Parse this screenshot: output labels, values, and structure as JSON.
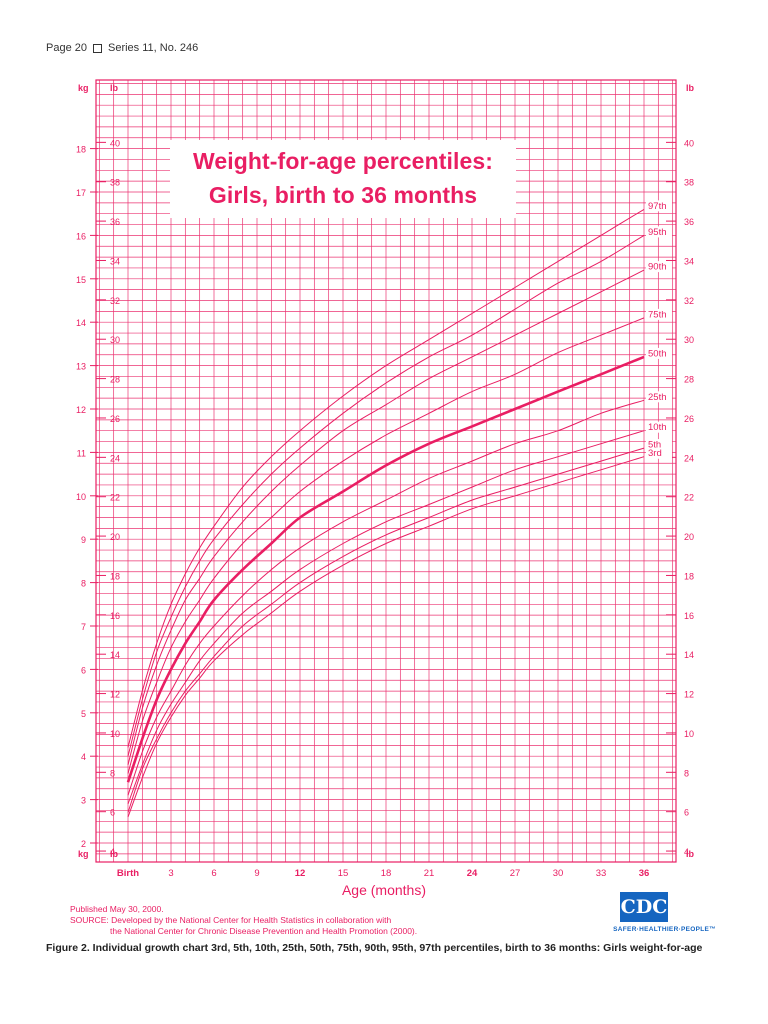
{
  "header": {
    "page": "Page 20",
    "series": "Series 11, No. 246"
  },
  "chart_data": {
    "type": "line",
    "title_lines": [
      "Weight-for-age percentiles:",
      "Girls, birth to 36 months"
    ],
    "xlabel": "Age (months)",
    "x_ticks": [
      "Birth",
      "3",
      "6",
      "9",
      "12",
      "15",
      "18",
      "21",
      "24",
      "27",
      "30",
      "33",
      "36"
    ],
    "x_range": [
      0,
      36
    ],
    "kg_axis": {
      "unit": "kg",
      "range": [
        2,
        18
      ],
      "ticks": [
        2,
        3,
        4,
        5,
        6,
        7,
        8,
        9,
        10,
        11,
        12,
        13,
        14,
        15,
        16,
        17,
        18
      ]
    },
    "lb_axis": {
      "unit": "lb",
      "range": [
        4,
        40
      ],
      "ticks": [
        4,
        6,
        8,
        10,
        12,
        14,
        16,
        18,
        20,
        22,
        24,
        26,
        28,
        30,
        32,
        34,
        36,
        38,
        40
      ]
    },
    "x": [
      0,
      1,
      2,
      3,
      4,
      5,
      6,
      8,
      10,
      12,
      15,
      18,
      21,
      24,
      27,
      30,
      33,
      36
    ],
    "series": [
      {
        "name": "97th",
        "values": [
          4.2,
          5.5,
          6.6,
          7.5,
          8.2,
          8.8,
          9.3,
          10.2,
          10.9,
          11.5,
          12.3,
          13.0,
          13.6,
          14.2,
          14.8,
          15.4,
          16.0,
          16.6
        ]
      },
      {
        "name": "95th",
        "values": [
          4.0,
          5.3,
          6.4,
          7.2,
          7.9,
          8.5,
          9.0,
          9.8,
          10.5,
          11.1,
          11.9,
          12.6,
          13.2,
          13.7,
          14.3,
          14.9,
          15.4,
          16.0
        ]
      },
      {
        "name": "90th",
        "values": [
          3.8,
          5.1,
          6.1,
          6.9,
          7.6,
          8.1,
          8.6,
          9.4,
          10.1,
          10.7,
          11.5,
          12.1,
          12.7,
          13.2,
          13.7,
          14.2,
          14.7,
          15.2
        ]
      },
      {
        "name": "75th",
        "values": [
          3.6,
          4.8,
          5.7,
          6.5,
          7.1,
          7.6,
          8.1,
          8.9,
          9.5,
          10.1,
          10.8,
          11.4,
          11.9,
          12.4,
          12.8,
          13.3,
          13.7,
          14.1
        ]
      },
      {
        "name": "50th",
        "values": [
          3.4,
          4.4,
          5.3,
          6.0,
          6.6,
          7.1,
          7.6,
          8.3,
          8.9,
          9.5,
          10.1,
          10.7,
          11.2,
          11.6,
          12.0,
          12.4,
          12.8,
          13.2
        ]
      },
      {
        "name": "25th",
        "values": [
          3.1,
          4.1,
          4.9,
          5.5,
          6.1,
          6.6,
          7.0,
          7.7,
          8.3,
          8.8,
          9.4,
          9.9,
          10.4,
          10.8,
          11.2,
          11.5,
          11.9,
          12.2
        ]
      },
      {
        "name": "10th",
        "values": [
          2.9,
          3.8,
          4.6,
          5.2,
          5.7,
          6.2,
          6.6,
          7.3,
          7.8,
          8.3,
          8.9,
          9.4,
          9.8,
          10.2,
          10.6,
          10.9,
          11.2,
          11.5
        ]
      },
      {
        "name": "5th",
        "values": [
          2.7,
          3.7,
          4.4,
          5.0,
          5.5,
          5.9,
          6.3,
          7.0,
          7.5,
          8.0,
          8.6,
          9.1,
          9.5,
          9.9,
          10.2,
          10.5,
          10.8,
          11.1
        ]
      },
      {
        "name": "3rd",
        "values": [
          2.6,
          3.5,
          4.3,
          4.9,
          5.4,
          5.8,
          6.2,
          6.8,
          7.3,
          7.8,
          8.4,
          8.9,
          9.3,
          9.7,
          10.0,
          10.3,
          10.6,
          10.9
        ]
      }
    ],
    "emphasized_series": "50th",
    "grid": true,
    "colors": {
      "line": "#e91e63",
      "grid": "#e91e63"
    }
  },
  "footer": {
    "published": "Published May 30, 2000.",
    "source_line1": "SOURCE: Developed by the National Center for Health Statistics in collaboration with",
    "source_line2": "the National Center for Chronic Disease Prevention and Health Promotion (2000)."
  },
  "caption": "Figure 2. Individual growth chart 3rd, 5th, 10th, 25th, 50th, 75th, 90th, 95th, 97th percentiles, birth to 36 months: Girls weight-for-age",
  "logo": {
    "text": "CDC",
    "tagline": "SAFER·HEALTHIER·PEOPLE™",
    "color": "#1565c0"
  }
}
